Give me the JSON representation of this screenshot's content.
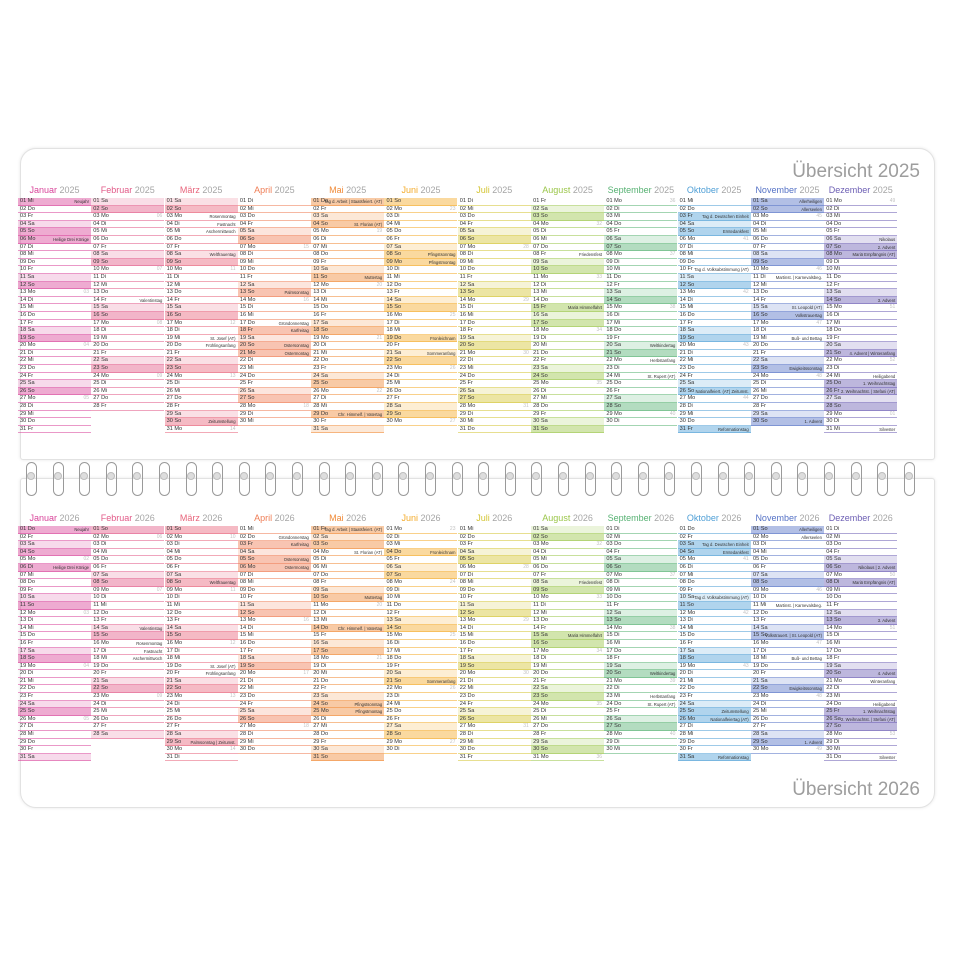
{
  "titles": {
    "y2025": "Übersicht 2025",
    "y2026": "Übersicht 2026"
  },
  "month_names": [
    "Januar",
    "Februar",
    "März",
    "April",
    "Mai",
    "Juni",
    "Juli",
    "August",
    "September",
    "Oktober",
    "November",
    "Dezember"
  ],
  "month_colors": [
    "#d9449a",
    "#e25a88",
    "#e8657c",
    "#ef7d55",
    "#f08a37",
    "#f4ab2a",
    "#d4c535",
    "#9bc64a",
    "#57b273",
    "#4f9fd6",
    "#5572c6",
    "#6d5fb4"
  ],
  "weekday_abbr": [
    "Mo",
    "Di",
    "Mi",
    "Do",
    "Fr",
    "Sa",
    "So"
  ],
  "years": [
    {
      "year": 2025,
      "holidays": {
        "0": {
          "1": "Neujahr",
          "6": "Heilige Drei Könige"
        },
        "1": {
          "14": "Valentinstag"
        },
        "2": {
          "3": "Rosenmontag",
          "4": "Fastnacht",
          "5": "Aschermittwoch",
          "8": "Weltfrauentag",
          "19": "St. Josef (AT)",
          "20": "Frühlingsanfang",
          "30": "Zeitumstellung"
        },
        "3": {
          "13": "Palmsonntag",
          "17": "Gründonnerstag",
          "18": "Karfreitag",
          "20": "Ostersonntag",
          "21": "Ostermontag"
        },
        "4": {
          "1": "Tag d. Arbeit | Staatsfeiert. (AT)",
          "4": "St. Florian (AT)",
          "11": "Muttertag",
          "29": "Chr. Himmelf. | Vatertag"
        },
        "5": {
          "8": "Pfingstsonntag",
          "9": "Pfingstmontag",
          "19": "Fronleichnam",
          "21": "Sommeranfang"
        },
        "6": {},
        "7": {
          "8": "Friedensfest",
          "15": "Mariä Himmelfahrt"
        },
        "8": {
          "20": "Weltkindertag",
          "22": "Herbstanfang",
          "24": "St. Rupert (AT)"
        },
        "9": {
          "3": "Tag d. Deutschen Einheit",
          "5": "Erntedankfest",
          "10": "Tag d. Volksabstimmung (AT)",
          "26": "Nationalfeiert. (AT) Zeitumst.",
          "31": "Reformationstag"
        },
        "10": {
          "1": "Allerheiligen",
          "2": "Allerseelen",
          "11": "Martinst. | Karnevalsbeg.",
          "15": "St. Leopold (AT)",
          "16": "Volkstrauertag",
          "19": "Buß- und Bettag",
          "23": "Ewigkeitssonntag",
          "30": "1. Advent"
        },
        "11": {
          "6": "Nikolaus",
          "7": "2. Advent",
          "8": "Mariä Empfängnis (AT)",
          "14": "3. Advent",
          "21": "4. Advent | Winteranfang",
          "24": "Heiligabend",
          "25": "1. Weihnachtstag",
          "26": "2. Weihnachtst. | Stefani (AT)",
          "31": "Silvester"
        }
      }
    },
    {
      "year": 2026,
      "holidays": {
        "0": {
          "1": "Neujahr",
          "6": "Heilige Drei Könige"
        },
        "1": {
          "14": "Valentinstag",
          "16": "Rosenmontag",
          "17": "Fastnacht",
          "18": "Aschermittwoch"
        },
        "2": {
          "8": "Weltfrauentag",
          "19": "St. Josef (AT)",
          "20": "Frühlingsanfang",
          "29": "Palmsonntag | Zeitumst."
        },
        "3": {
          "2": "Gründonnerstag",
          "3": "Karfreitag",
          "5": "Ostersonntag",
          "6": "Ostermontag"
        },
        "4": {
          "1": "Tag d. Arbeit | Staatsfeiert. (AT)",
          "4": "St. Florian (AT)",
          "10": "Muttertag",
          "14": "Chr. Himmelf. | Vatertag",
          "24": "Pfingstsonntag",
          "25": "Pfingstmontag"
        },
        "5": {
          "4": "Fronleichnam",
          "21": "Sommeranfang"
        },
        "6": {},
        "7": {
          "8": "Friedensfest",
          "15": "Mariä Himmelfahrt"
        },
        "8": {
          "20": "Weltkindertag",
          "23": "Herbstanfang",
          "24": "St. Rupert (AT)"
        },
        "9": {
          "3": "Tag d. Deutschen Einheit",
          "4": "Erntedankfest",
          "10": "Tag d. Volksabstimmung (AT)",
          "25": "Zeitumstellung",
          "26": "Nationalfeiertag (AT)",
          "31": "Reformationstag"
        },
        "10": {
          "1": "Allerheiligen",
          "2": "Allerseelen",
          "11": "Martinst. | Karnevalsbeg.",
          "15": "Volkstrauert. | St. Leopold (AT)",
          "18": "Buß- und Bettag",
          "22": "Ewigkeitssonntag",
          "29": "1. Advent"
        },
        "11": {
          "6": "Nikolaus | 2. Advent",
          "8": "Mariä Empfängnis (AT)",
          "13": "3. Advent",
          "20": "4. Advent",
          "21": "Winteranfang",
          "24": "Heiligabend",
          "25": "1. Weihnachtstag",
          "26": "2. Weihnachtst. | Stefani (AT)",
          "27": "",
          "31": "Silvester"
        }
      }
    }
  ]
}
